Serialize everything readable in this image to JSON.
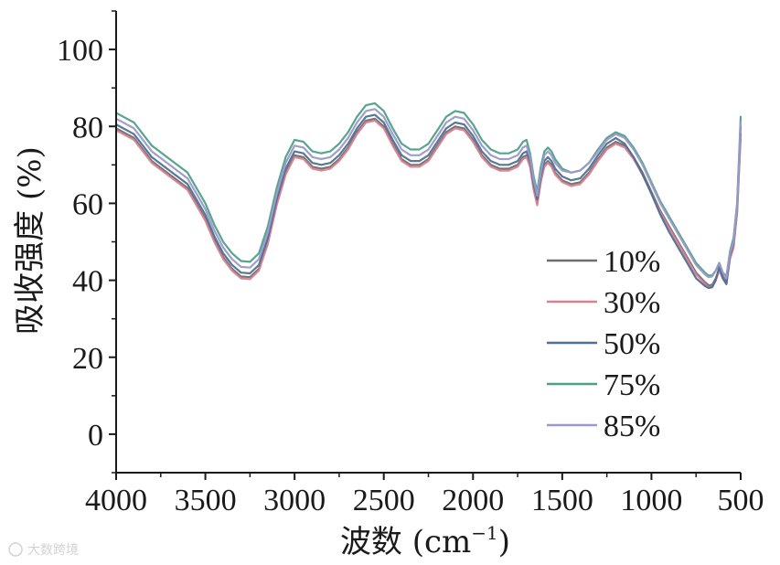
{
  "watermark": "大数跨境",
  "chart_data": {
    "type": "line",
    "ylabel": "吸收强度 (%)",
    "xlabel_prefix": "波数 (cm",
    "xlabel_sup": "−1",
    "xlabel_suffix": ")",
    "xlim": [
      4000,
      500
    ],
    "ylim": [
      -10,
      110
    ],
    "x_ticks": [
      "4000",
      "3500",
      "3000",
      "2500",
      "2000",
      "1500",
      "1000",
      "500"
    ],
    "y_ticks": [
      "100",
      "80",
      "60",
      "40",
      "20",
      "0"
    ],
    "legend_position": "right",
    "x": [
      4000,
      3900,
      3800,
      3700,
      3600,
      3500,
      3450,
      3400,
      3350,
      3300,
      3250,
      3200,
      3150,
      3100,
      3050,
      3000,
      2950,
      2900,
      2850,
      2800,
      2750,
      2700,
      2650,
      2600,
      2550,
      2500,
      2450,
      2400,
      2350,
      2300,
      2250,
      2200,
      2150,
      2100,
      2050,
      2000,
      1950,
      1900,
      1850,
      1800,
      1750,
      1720,
      1700,
      1680,
      1660,
      1640,
      1620,
      1600,
      1580,
      1560,
      1540,
      1500,
      1450,
      1400,
      1350,
      1300,
      1250,
      1200,
      1150,
      1100,
      1050,
      1000,
      950,
      900,
      850,
      800,
      750,
      700,
      680,
      660,
      640,
      620,
      600,
      580,
      560,
      540,
      520,
      500
    ],
    "series": [
      {
        "name": "10%",
        "color": "#6e6e6e",
        "values": [
          79.5,
          77,
          71,
          67.5,
          64,
          56,
          50.5,
          46,
          43,
          41,
          40.8,
          43,
          50,
          60,
          68,
          72.5,
          72,
          69.5,
          69,
          69.5,
          71.5,
          74.5,
          78.5,
          81.5,
          82,
          80,
          75.5,
          71.5,
          70,
          70,
          71.5,
          75,
          78.5,
          80,
          79.5,
          76.5,
          72.5,
          70,
          69,
          69,
          70,
          72,
          72.5,
          70,
          64,
          60,
          66,
          70,
          71,
          70,
          68,
          66,
          65,
          65.5,
          68,
          71.5,
          74.5,
          76,
          75,
          72,
          68,
          63,
          58,
          54,
          50,
          46,
          42,
          39.5,
          38.7,
          38.8,
          40.5,
          43,
          41,
          39.5,
          46,
          49,
          58,
          78
        ]
      },
      {
        "name": "30%",
        "color": "#d9828f",
        "values": [
          79,
          76.5,
          70.5,
          67,
          63.5,
          55.5,
          50,
          45.5,
          42.5,
          40.5,
          40.3,
          42.5,
          49.5,
          59.5,
          67.5,
          72,
          71.5,
          69,
          68.5,
          69,
          71,
          74,
          78,
          81,
          81.5,
          79.5,
          75,
          71,
          69.5,
          69.5,
          71,
          74.5,
          78,
          79.5,
          79,
          76,
          72,
          69.5,
          68.5,
          68.5,
          69.5,
          71.5,
          72,
          69.5,
          63.5,
          59.5,
          65.5,
          69.5,
          70.5,
          69.5,
          67.5,
          65.5,
          64.5,
          65,
          67.5,
          71,
          74,
          75.5,
          74.5,
          71.5,
          67.5,
          62.5,
          57.5,
          53.5,
          49.5,
          45.5,
          41.5,
          39,
          38.2,
          38.3,
          40,
          42.5,
          40.5,
          39,
          45.5,
          48.5,
          57.5,
          77.5
        ]
      },
      {
        "name": "50%",
        "color": "#4f6f95",
        "values": [
          80.5,
          78,
          72,
          68.5,
          65,
          57,
          51.5,
          47,
          44,
          42,
          41.8,
          44,
          51,
          61,
          69,
          73.5,
          73,
          70.5,
          70,
          70.5,
          72.5,
          75.5,
          79.5,
          82.5,
          83,
          81,
          76.5,
          72.5,
          71,
          71,
          72.5,
          76,
          79.5,
          81,
          80.5,
          77.5,
          73.5,
          71,
          70,
          70,
          71,
          73,
          73.5,
          71,
          65,
          61,
          67,
          71,
          72,
          71,
          69,
          67,
          66,
          66.5,
          69,
          72.5,
          75.5,
          77,
          75.5,
          72,
          67.5,
          62.5,
          57,
          52.5,
          48.5,
          44.5,
          40.5,
          38.5,
          38,
          38.2,
          40,
          43.5,
          40.5,
          39,
          46.5,
          49.5,
          59,
          80
        ]
      },
      {
        "name": "75%",
        "color": "#4f9f86",
        "values": [
          83.5,
          81,
          75,
          71.5,
          68,
          60,
          54.5,
          50,
          47,
          45,
          44.8,
          47,
          54,
          64,
          72,
          76.5,
          76,
          73.5,
          73,
          73.5,
          75.5,
          78.5,
          82.5,
          85.5,
          86,
          84,
          79.5,
          75.5,
          74,
          74,
          75.5,
          79,
          82.5,
          84,
          83.5,
          80.5,
          76.5,
          74,
          73,
          73,
          74,
          76,
          76.5,
          73,
          67,
          63,
          69.5,
          73.5,
          74.5,
          73.5,
          71.5,
          69,
          68,
          68.5,
          70.5,
          74,
          77,
          78.5,
          77.5,
          74.5,
          70.5,
          65.5,
          60.5,
          56.5,
          52.5,
          48.5,
          44.5,
          42,
          41.2,
          41.3,
          42.5,
          44.5,
          42,
          41,
          47.5,
          51,
          60,
          82.5
        ]
      },
      {
        "name": "85%",
        "color": "#9a9acb",
        "values": [
          82,
          79.5,
          73.5,
          70,
          66.5,
          58.5,
          53,
          48.5,
          45.5,
          43.5,
          43.3,
          45.5,
          52.5,
          62.5,
          70.5,
          75,
          74.5,
          72,
          71.5,
          72,
          74,
          77,
          81,
          84,
          84.5,
          82.5,
          78,
          74,
          72.5,
          72.5,
          74,
          77.5,
          81,
          82.5,
          82,
          79,
          75,
          72.5,
          71.5,
          71.5,
          72.5,
          74.5,
          75,
          72,
          66,
          62,
          68,
          72.5,
          73.5,
          72.5,
          70.5,
          68.5,
          68,
          68.5,
          70.5,
          73.5,
          76.5,
          78,
          77,
          74,
          70,
          65,
          60,
          56,
          52,
          48,
          44,
          41.5,
          40.8,
          41,
          42.5,
          44.5,
          42,
          40.5,
          47,
          50,
          59.5,
          81
        ]
      }
    ]
  }
}
